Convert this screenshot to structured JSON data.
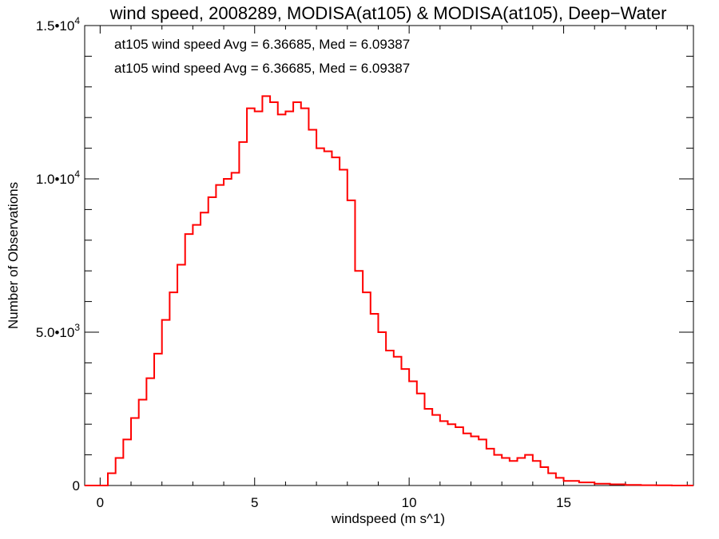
{
  "chart_data": {
    "type": "line",
    "title": "wind speed, 2008289, MODISA(at105) & MODISA(at105), Deep−Water",
    "xlabel": "windspeed (m s^1)",
    "ylabel": "Number of Observations",
    "xlim": [
      -0.5,
      19.2
    ],
    "ylim": [
      0,
      15000
    ],
    "xticks": [
      0,
      5,
      10,
      15
    ],
    "xtick_labels": [
      "0",
      "5",
      "10",
      "15"
    ],
    "yticks": [
      {
        "value": 0,
        "mantissa": "0",
        "exp": ""
      },
      {
        "value": 5000,
        "mantissa": "5.0•10",
        "exp": "3"
      },
      {
        "value": 10000,
        "mantissa": "1.0•10",
        "exp": "4"
      },
      {
        "value": 15000,
        "mantissa": "1.5•10",
        "exp": "4"
      }
    ],
    "annotations": [
      {
        "text": "at105 wind speed Avg = 6.36685, Med = 6.09387",
        "color": "#000000"
      },
      {
        "text": "at105 wind speed Avg = 6.36685, Med = 6.09387",
        "color": "#ff0000"
      }
    ],
    "series": [
      {
        "color": "#ff0000",
        "x": [
          0.0,
          0.25,
          0.5,
          0.75,
          1.0,
          1.25,
          1.5,
          1.75,
          2.0,
          2.25,
          2.5,
          2.75,
          3.0,
          3.25,
          3.5,
          3.75,
          4.0,
          4.25,
          4.5,
          4.75,
          5.0,
          5.25,
          5.5,
          5.75,
          6.0,
          6.25,
          6.5,
          6.75,
          7.0,
          7.25,
          7.5,
          7.75,
          8.0,
          8.25,
          8.5,
          8.75,
          9.0,
          9.25,
          9.5,
          9.75,
          10.0,
          10.25,
          10.5,
          10.75,
          11.0,
          11.25,
          11.5,
          11.75,
          12.0,
          12.25,
          12.5,
          12.75,
          13.0,
          13.25,
          13.5,
          13.75,
          14.0,
          14.25,
          14.5,
          14.75,
          15.0,
          15.5,
          16.0,
          16.5,
          17.0,
          17.5,
          18.0,
          18.5,
          19.0
        ],
        "values": [
          0,
          400,
          900,
          1500,
          2200,
          2800,
          3500,
          4300,
          5400,
          6300,
          7200,
          8200,
          8500,
          8900,
          9400,
          9800,
          10000,
          10200,
          11200,
          12300,
          12200,
          12700,
          12500,
          12100,
          12200,
          12500,
          12300,
          11600,
          11000,
          10900,
          10700,
          10300,
          9300,
          7000,
          6300,
          5600,
          5000,
          4400,
          4200,
          3800,
          3400,
          3000,
          2500,
          2300,
          2100,
          2000,
          1900,
          1700,
          1600,
          1500,
          1200,
          1000,
          900,
          800,
          900,
          1000,
          800,
          600,
          400,
          250,
          150,
          100,
          60,
          40,
          20,
          10,
          5,
          0,
          0
        ]
      }
    ]
  }
}
